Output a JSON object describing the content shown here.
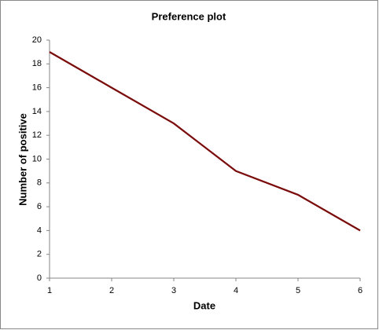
{
  "chart_data": {
    "type": "line",
    "title": "Preference plot",
    "x_label": "Date",
    "y_label": "Number of positive",
    "x": [
      1,
      2,
      3,
      4,
      5,
      6
    ],
    "values": [
      19,
      16,
      13,
      9,
      7,
      4
    ],
    "color": "#7b0c0c",
    "xlim": [
      1,
      6
    ],
    "xticks": [
      1,
      2,
      3,
      4,
      5,
      6
    ],
    "ylim": [
      0,
      20
    ],
    "yticks": [
      0,
      2,
      4,
      6,
      8,
      10,
      12,
      14,
      16,
      18,
      20
    ],
    "grid": false
  }
}
